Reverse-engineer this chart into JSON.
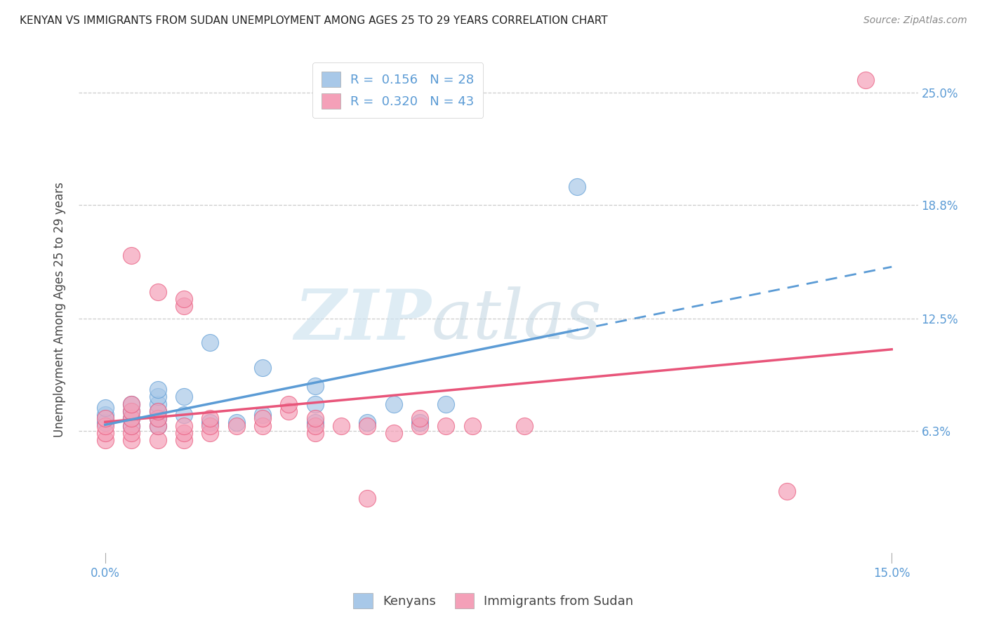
{
  "title": "KENYAN VS IMMIGRANTS FROM SUDAN UNEMPLOYMENT AMONG AGES 25 TO 29 YEARS CORRELATION CHART",
  "source": "Source: ZipAtlas.com",
  "ylabel": "Unemployment Among Ages 25 to 29 years",
  "xlabel": "",
  "xlim": [
    -0.005,
    0.155
  ],
  "ylim": [
    -0.01,
    0.27
  ],
  "yticks": [
    0.063,
    0.125,
    0.188,
    0.25
  ],
  "ytick_labels_left": [
    "6.3%",
    "12.5%",
    "18.8%",
    "25.0%"
  ],
  "yticks_right": [
    0.063,
    0.125,
    0.188,
    0.25
  ],
  "ytick_labels_right": [
    "6.3%",
    "12.5%",
    "18.8%",
    "25.0%"
  ],
  "xticks": [
    0.0,
    0.15
  ],
  "xtick_labels": [
    "0.0%",
    "15.0%"
  ],
  "legend_r1": "R =  0.156",
  "legend_n1": "N = 28",
  "legend_r2": "R =  0.320",
  "legend_n2": "N = 43",
  "color_kenya": "#a8c8e8",
  "color_sudan": "#f4a0b8",
  "color_kenya_line": "#5b9bd5",
  "color_sudan_line": "#e8557a",
  "color_kenya_dark": "#5b9bd5",
  "color_sudan_dark": "#e8557a",
  "kenya_x": [
    0.0,
    0.0,
    0.0,
    0.005,
    0.005,
    0.005,
    0.005,
    0.01,
    0.01,
    0.01,
    0.01,
    0.01,
    0.01,
    0.015,
    0.015,
    0.02,
    0.02,
    0.025,
    0.03,
    0.03,
    0.04,
    0.04,
    0.04,
    0.05,
    0.055,
    0.06,
    0.065,
    0.09
  ],
  "kenya_y": [
    0.068,
    0.072,
    0.076,
    0.066,
    0.07,
    0.074,
    0.078,
    0.066,
    0.07,
    0.074,
    0.078,
    0.082,
    0.086,
    0.072,
    0.082,
    0.068,
    0.112,
    0.068,
    0.072,
    0.098,
    0.068,
    0.078,
    0.088,
    0.068,
    0.078,
    0.068,
    0.078,
    0.198
  ],
  "sudan_x": [
    0.0,
    0.0,
    0.0,
    0.0,
    0.005,
    0.005,
    0.005,
    0.005,
    0.005,
    0.005,
    0.005,
    0.01,
    0.01,
    0.01,
    0.01,
    0.01,
    0.015,
    0.015,
    0.015,
    0.015,
    0.015,
    0.02,
    0.02,
    0.02,
    0.025,
    0.03,
    0.03,
    0.035,
    0.035,
    0.04,
    0.04,
    0.04,
    0.045,
    0.05,
    0.05,
    0.055,
    0.06,
    0.06,
    0.065,
    0.07,
    0.08,
    0.13,
    0.145
  ],
  "sudan_y": [
    0.058,
    0.062,
    0.066,
    0.07,
    0.058,
    0.062,
    0.066,
    0.07,
    0.074,
    0.078,
    0.16,
    0.058,
    0.066,
    0.07,
    0.074,
    0.14,
    0.058,
    0.062,
    0.066,
    0.132,
    0.136,
    0.062,
    0.066,
    0.07,
    0.066,
    0.066,
    0.07,
    0.074,
    0.078,
    0.062,
    0.066,
    0.07,
    0.066,
    0.026,
    0.066,
    0.062,
    0.066,
    0.07,
    0.066,
    0.066,
    0.066,
    0.03,
    0.257
  ],
  "grid_color": "#cccccc",
  "grid_style": "--",
  "background_color": "#ffffff",
  "title_fontsize": 11,
  "tick_fontsize": 12,
  "ylabel_fontsize": 12,
  "watermark_zip_color": "#d8e8f0",
  "watermark_atlas_color": "#c8d8e0"
}
